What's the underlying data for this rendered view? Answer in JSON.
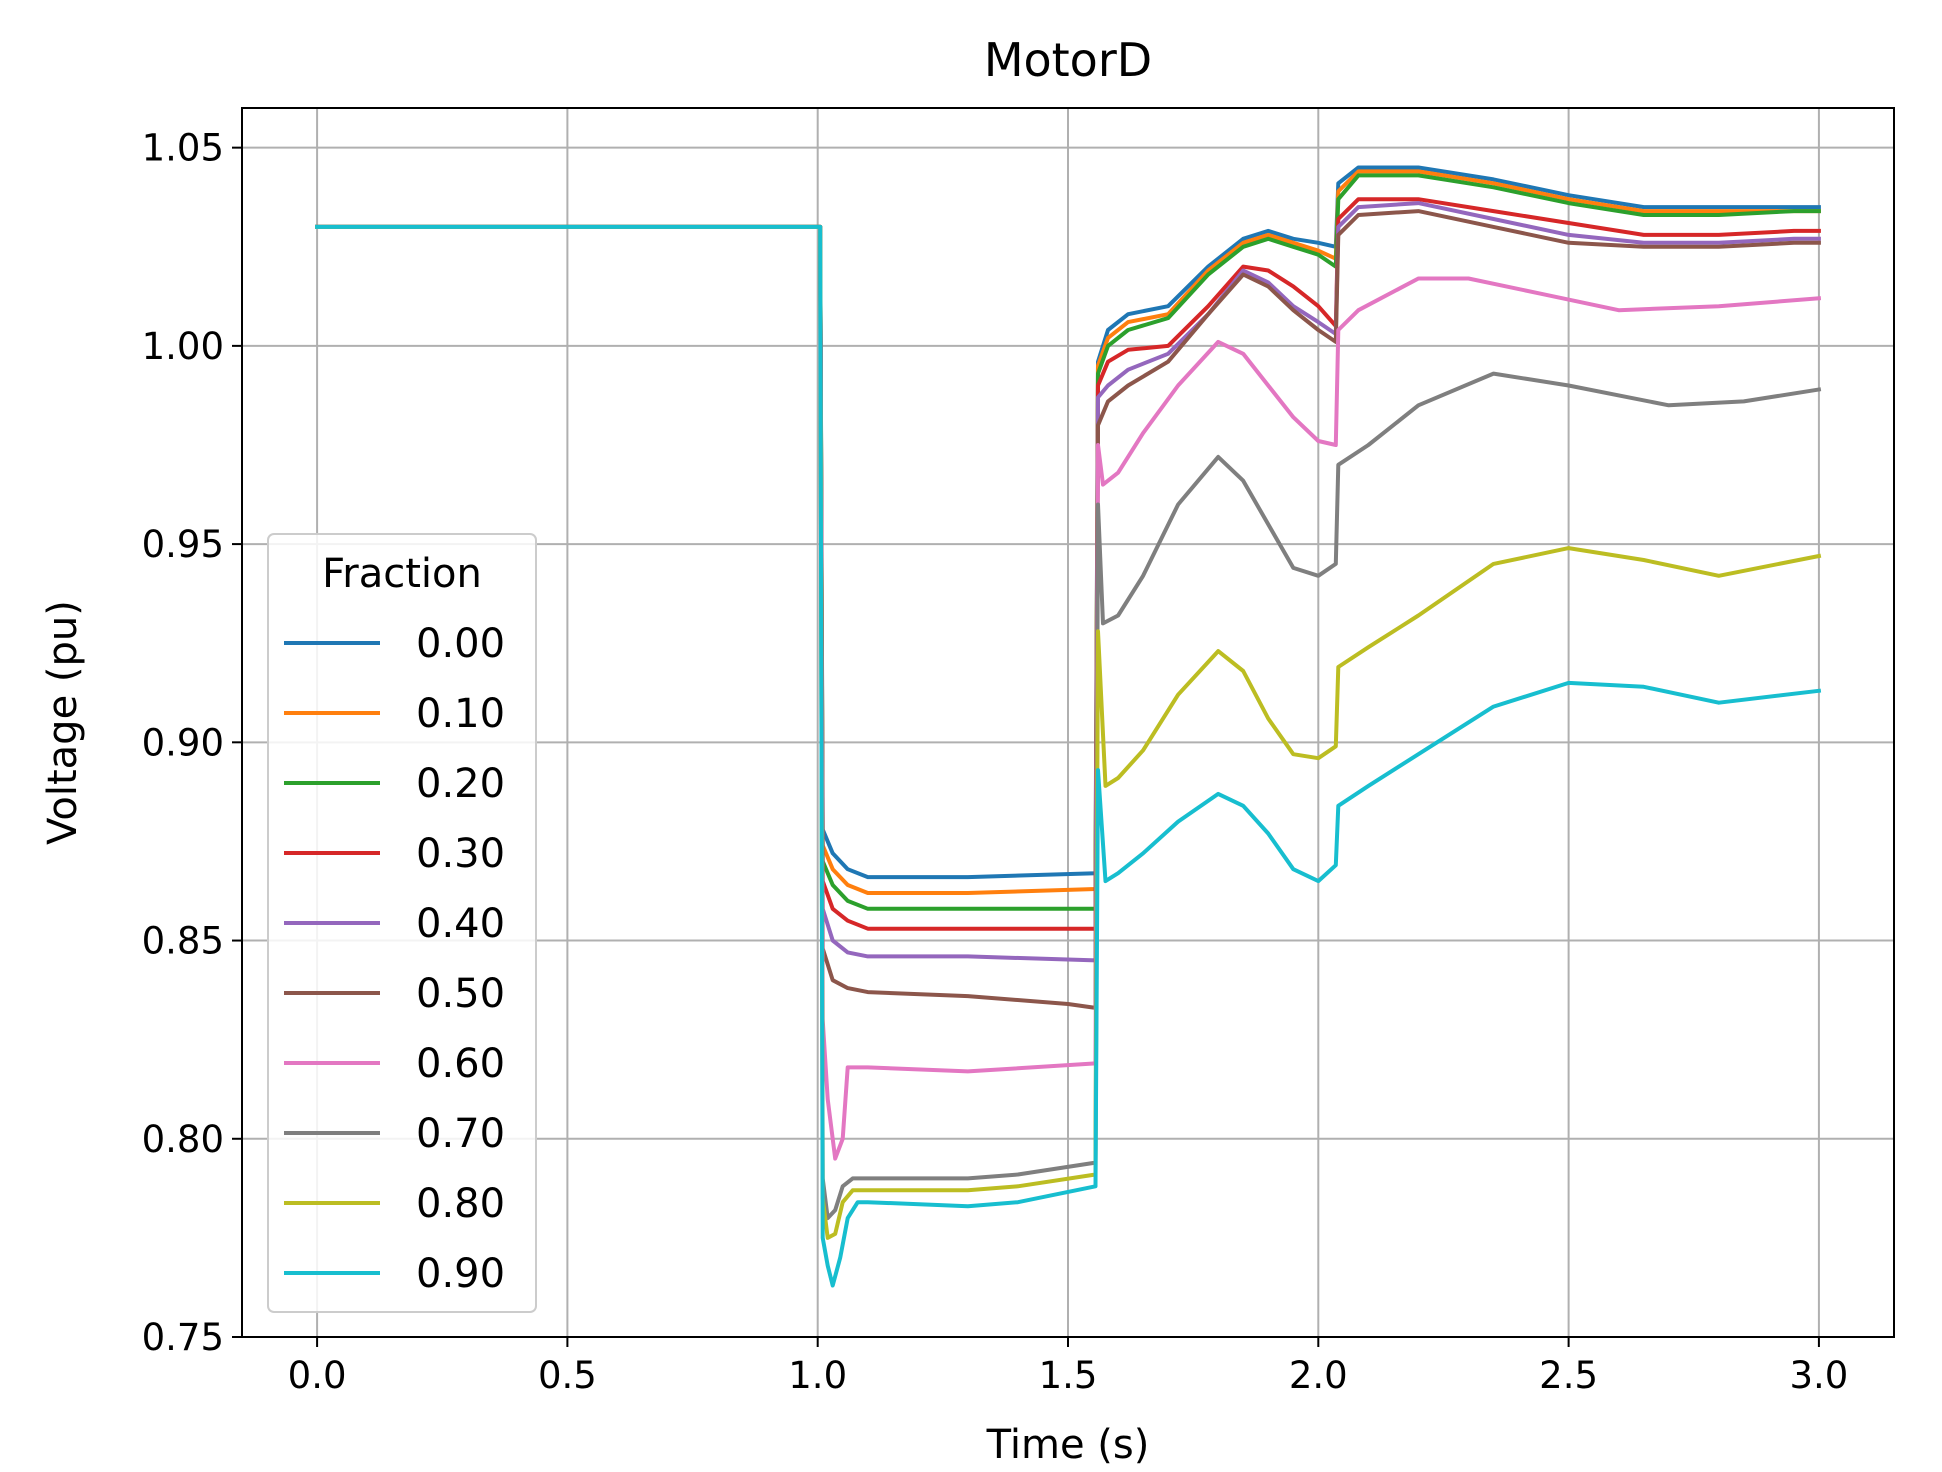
{
  "chart_data": {
    "type": "line",
    "title": "MotorD",
    "xlabel": "Time (s)",
    "ylabel": "Voltage (pu)",
    "xlim": [
      -0.15,
      3.15
    ],
    "ylim": [
      0.75,
      1.06
    ],
    "xticks": [
      0.0,
      0.5,
      1.0,
      1.5,
      2.0,
      2.5,
      3.0
    ],
    "xtick_labels": [
      "0.0",
      "0.5",
      "1.0",
      "1.5",
      "2.0",
      "2.5",
      "3.0"
    ],
    "yticks": [
      0.75,
      0.8,
      0.85,
      0.9,
      0.95,
      1.0,
      1.05
    ],
    "ytick_labels": [
      "0.75",
      "0.80",
      "0.85",
      "0.90",
      "0.95",
      "1.00",
      "1.05"
    ],
    "grid": true,
    "legend": {
      "title": "Fraction",
      "position": "lower-left"
    },
    "series": [
      {
        "name": "0.00",
        "color": "#1f77b4",
        "x": [
          0,
          1.005,
          1.01,
          1.03,
          1.06,
          1.1,
          1.3,
          1.555,
          1.56,
          1.58,
          1.62,
          1.7,
          1.78,
          1.85,
          1.9,
          1.95,
          2.0,
          2.035,
          2.04,
          2.08,
          2.2,
          2.35,
          2.5,
          2.65,
          2.8,
          2.95,
          3.0
        ],
        "y": [
          1.03,
          1.03,
          0.878,
          0.872,
          0.868,
          0.866,
          0.866,
          0.867,
          0.996,
          1.004,
          1.008,
          1.01,
          1.02,
          1.027,
          1.029,
          1.027,
          1.026,
          1.025,
          1.041,
          1.045,
          1.045,
          1.042,
          1.038,
          1.035,
          1.035,
          1.035,
          1.035
        ]
      },
      {
        "name": "0.10",
        "color": "#ff7f0e",
        "x": [
          0,
          1.005,
          1.01,
          1.03,
          1.06,
          1.1,
          1.3,
          1.555,
          1.56,
          1.58,
          1.62,
          1.7,
          1.78,
          1.85,
          1.9,
          1.95,
          2.0,
          2.035,
          2.04,
          2.08,
          2.2,
          2.35,
          2.5,
          2.65,
          2.8,
          2.95,
          3.0
        ],
        "y": [
          1.03,
          1.03,
          0.874,
          0.868,
          0.864,
          0.862,
          0.862,
          0.863,
          0.995,
          1.002,
          1.006,
          1.008,
          1.019,
          1.026,
          1.028,
          1.026,
          1.024,
          1.022,
          1.039,
          1.044,
          1.044,
          1.041,
          1.037,
          1.034,
          1.034,
          1.034,
          1.034
        ]
      },
      {
        "name": "0.20",
        "color": "#2ca02c",
        "x": [
          0,
          1.005,
          1.01,
          1.03,
          1.06,
          1.1,
          1.3,
          1.555,
          1.56,
          1.58,
          1.62,
          1.7,
          1.78,
          1.85,
          1.9,
          1.95,
          2.0,
          2.035,
          2.04,
          2.08,
          2.2,
          2.35,
          2.5,
          2.65,
          2.8,
          2.95,
          3.0
        ],
        "y": [
          1.03,
          1.03,
          0.87,
          0.864,
          0.86,
          0.858,
          0.858,
          0.858,
          0.993,
          1.0,
          1.004,
          1.007,
          1.018,
          1.025,
          1.027,
          1.025,
          1.023,
          1.02,
          1.037,
          1.043,
          1.043,
          1.04,
          1.036,
          1.033,
          1.033,
          1.034,
          1.034
        ]
      },
      {
        "name": "0.30",
        "color": "#d62728",
        "x": [
          0,
          1.005,
          1.01,
          1.03,
          1.06,
          1.1,
          1.3,
          1.555,
          1.56,
          1.58,
          1.62,
          1.7,
          1.78,
          1.85,
          1.9,
          1.95,
          2.0,
          2.035,
          2.04,
          2.08,
          2.2,
          2.35,
          2.5,
          2.65,
          2.8,
          2.95,
          3.0
        ],
        "y": [
          1.03,
          1.03,
          0.865,
          0.858,
          0.855,
          0.853,
          0.853,
          0.853,
          0.99,
          0.996,
          0.999,
          1.0,
          1.01,
          1.02,
          1.019,
          1.015,
          1.01,
          1.005,
          1.032,
          1.037,
          1.037,
          1.034,
          1.031,
          1.028,
          1.028,
          1.029,
          1.029
        ]
      },
      {
        "name": "0.40",
        "color": "#9467bd",
        "x": [
          0,
          1.005,
          1.01,
          1.03,
          1.06,
          1.1,
          1.3,
          1.555,
          1.56,
          1.58,
          1.62,
          1.7,
          1.78,
          1.85,
          1.9,
          1.95,
          2.0,
          2.035,
          2.04,
          2.08,
          2.2,
          2.35,
          2.5,
          2.65,
          2.8,
          2.95,
          3.0
        ],
        "y": [
          1.03,
          1.03,
          0.858,
          0.85,
          0.847,
          0.846,
          0.846,
          0.845,
          0.987,
          0.99,
          0.994,
          0.998,
          1.008,
          1.019,
          1.016,
          1.01,
          1.006,
          1.003,
          1.03,
          1.035,
          1.036,
          1.032,
          1.028,
          1.026,
          1.026,
          1.027,
          1.027
        ]
      },
      {
        "name": "0.50",
        "color": "#8c564b",
        "x": [
          0,
          1.005,
          1.01,
          1.03,
          1.06,
          1.1,
          1.3,
          1.5,
          1.555,
          1.56,
          1.58,
          1.62,
          1.7,
          1.78,
          1.85,
          1.9,
          1.95,
          2.0,
          2.035,
          2.04,
          2.08,
          2.2,
          2.35,
          2.5,
          2.65,
          2.8,
          2.95,
          3.0
        ],
        "y": [
          1.03,
          1.03,
          0.848,
          0.84,
          0.838,
          0.837,
          0.836,
          0.834,
          0.833,
          0.98,
          0.986,
          0.99,
          0.996,
          1.008,
          1.018,
          1.015,
          1.009,
          1.004,
          1.001,
          1.028,
          1.033,
          1.034,
          1.03,
          1.026,
          1.025,
          1.025,
          1.026,
          1.026
        ]
      },
      {
        "name": "0.60",
        "color": "#e377c2",
        "x": [
          0,
          1.005,
          1.01,
          1.02,
          1.035,
          1.05,
          1.06,
          1.1,
          1.3,
          1.555,
          1.56,
          1.57,
          1.6,
          1.65,
          1.72,
          1.8,
          1.85,
          1.9,
          1.95,
          2.0,
          2.035,
          2.04,
          2.08,
          2.2,
          2.3,
          2.45,
          2.6,
          2.8,
          3.0
        ],
        "y": [
          1.03,
          1.03,
          0.83,
          0.81,
          0.795,
          0.8,
          0.818,
          0.818,
          0.817,
          0.819,
          0.975,
          0.965,
          0.968,
          0.978,
          0.99,
          1.001,
          0.998,
          0.99,
          0.982,
          0.976,
          0.975,
          1.004,
          1.009,
          1.017,
          1.017,
          1.013,
          1.009,
          1.01,
          1.012
        ]
      },
      {
        "name": "0.70",
        "color": "#7f7f7f",
        "x": [
          0,
          1.005,
          1.01,
          1.02,
          1.035,
          1.05,
          1.07,
          1.1,
          1.3,
          1.4,
          1.555,
          1.56,
          1.57,
          1.6,
          1.65,
          1.72,
          1.8,
          1.85,
          1.9,
          1.95,
          2.0,
          2.035,
          2.04,
          2.1,
          2.2,
          2.35,
          2.5,
          2.7,
          2.85,
          3.0
        ],
        "y": [
          1.03,
          1.03,
          0.79,
          0.78,
          0.782,
          0.788,
          0.79,
          0.79,
          0.79,
          0.791,
          0.794,
          0.96,
          0.93,
          0.932,
          0.942,
          0.96,
          0.972,
          0.966,
          0.955,
          0.944,
          0.942,
          0.945,
          0.97,
          0.975,
          0.985,
          0.993,
          0.99,
          0.985,
          0.986,
          0.989
        ]
      },
      {
        "name": "0.80",
        "color": "#bcbd22",
        "x": [
          0,
          1.005,
          1.01,
          1.02,
          1.035,
          1.05,
          1.07,
          1.1,
          1.3,
          1.4,
          1.555,
          1.56,
          1.575,
          1.6,
          1.65,
          1.72,
          1.8,
          1.85,
          1.9,
          1.95,
          2.0,
          2.035,
          2.04,
          2.1,
          2.2,
          2.35,
          2.5,
          2.65,
          2.8,
          3.0
        ],
        "y": [
          1.03,
          1.03,
          0.785,
          0.775,
          0.776,
          0.784,
          0.787,
          0.787,
          0.787,
          0.788,
          0.791,
          0.928,
          0.889,
          0.891,
          0.898,
          0.912,
          0.923,
          0.918,
          0.906,
          0.897,
          0.896,
          0.899,
          0.919,
          0.924,
          0.932,
          0.945,
          0.949,
          0.946,
          0.942,
          0.947
        ]
      },
      {
        "name": "0.90",
        "color": "#17becf",
        "x": [
          0,
          1.005,
          1.01,
          1.02,
          1.03,
          1.045,
          1.06,
          1.08,
          1.1,
          1.3,
          1.4,
          1.555,
          1.56,
          1.575,
          1.6,
          1.65,
          1.72,
          1.8,
          1.85,
          1.9,
          1.95,
          2.0,
          2.035,
          2.04,
          2.1,
          2.2,
          2.35,
          2.5,
          2.65,
          2.8,
          3.0
        ],
        "y": [
          1.03,
          1.03,
          0.775,
          0.768,
          0.763,
          0.77,
          0.78,
          0.784,
          0.784,
          0.783,
          0.784,
          0.788,
          0.893,
          0.865,
          0.867,
          0.872,
          0.88,
          0.887,
          0.884,
          0.877,
          0.868,
          0.865,
          0.869,
          0.884,
          0.889,
          0.897,
          0.909,
          0.915,
          0.914,
          0.91,
          0.913
        ]
      }
    ]
  }
}
